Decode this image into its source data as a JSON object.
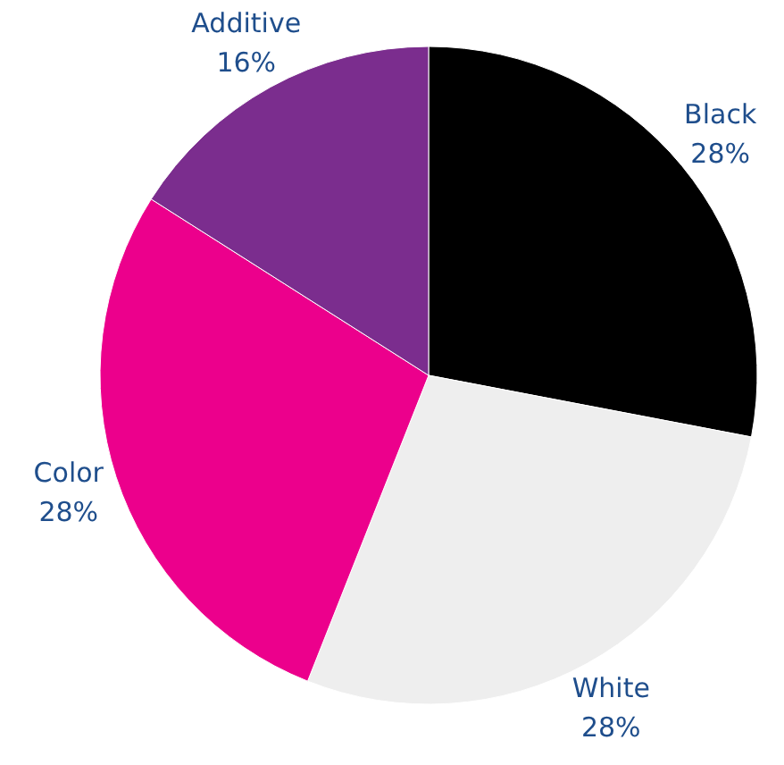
{
  "chart_data": {
    "type": "pie",
    "categories": [
      "Black",
      "White",
      "Color",
      "Additive"
    ],
    "values": [
      28,
      28,
      28,
      16
    ],
    "value_labels": [
      "28%",
      "28%",
      "28%",
      "16%"
    ],
    "colors": [
      "#000000",
      "#eeeeee",
      "#ec008c",
      "#7b2d8e"
    ]
  }
}
